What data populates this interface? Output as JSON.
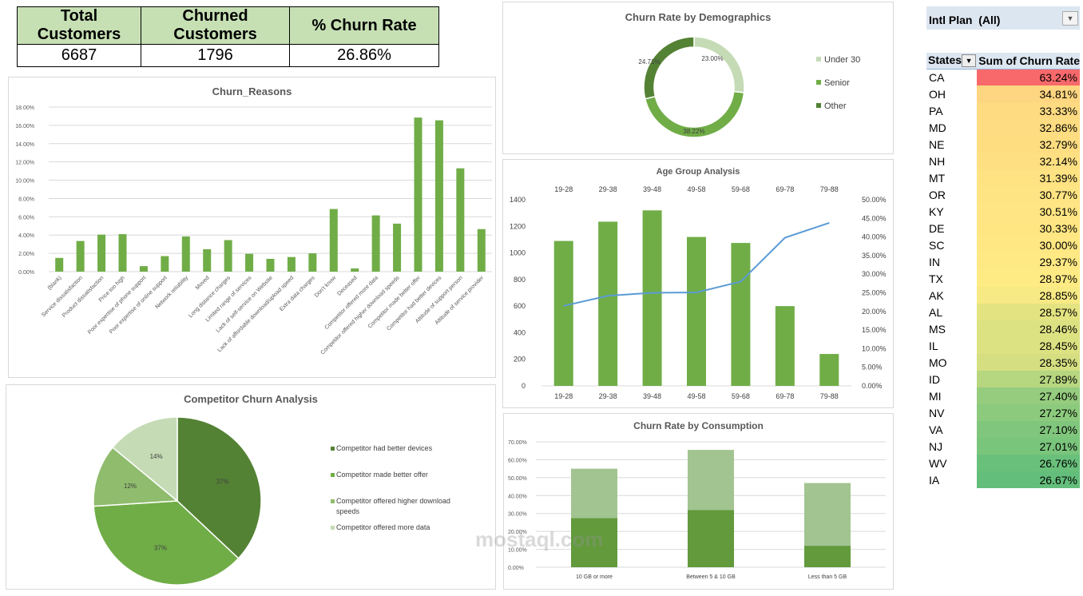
{
  "kpi": {
    "headers": [
      "Total Customers",
      "Churned Customers",
      "% Churn Rate"
    ],
    "values": [
      "6687",
      "1796",
      "26.86%"
    ]
  },
  "colors": {
    "dark": "#548235",
    "mid": "#70ad47",
    "light": "#a9d08e",
    "lighter": "#c5dbb5",
    "line": "#5b9bd5"
  },
  "watermark": "mostaql.com",
  "filter": {
    "label": "Intl Plan",
    "value": "(All)"
  },
  "pivot": {
    "col1": "States",
    "col2": "Sum of Churn Rate",
    "rows": [
      [
        "CA",
        "63.24%"
      ],
      [
        "OH",
        "34.81%"
      ],
      [
        "PA",
        "33.33%"
      ],
      [
        "MD",
        "32.86%"
      ],
      [
        "NE",
        "32.79%"
      ],
      [
        "NH",
        "32.14%"
      ],
      [
        "MT",
        "31.39%"
      ],
      [
        "OR",
        "30.77%"
      ],
      [
        "KY",
        "30.51%"
      ],
      [
        "DE",
        "30.33%"
      ],
      [
        "SC",
        "30.00%"
      ],
      [
        "IN",
        "29.37%"
      ],
      [
        "TX",
        "28.97%"
      ],
      [
        "AK",
        "28.85%"
      ],
      [
        "AL",
        "28.57%"
      ],
      [
        "MS",
        "28.46%"
      ],
      [
        "IL",
        "28.45%"
      ],
      [
        "MO",
        "28.35%"
      ],
      [
        "ID",
        "27.89%"
      ],
      [
        "MI",
        "27.40%"
      ],
      [
        "NV",
        "27.27%"
      ],
      [
        "VA",
        "27.10%"
      ],
      [
        "NJ",
        "27.01%"
      ],
      [
        "WV",
        "26.76%"
      ],
      [
        "IA",
        "26.67%"
      ]
    ]
  },
  "chart_data": [
    {
      "id": "reasons",
      "type": "bar",
      "title": "Churn_Reasons",
      "ylim": [
        0,
        18
      ],
      "yticks": [
        "0.00%",
        "2.00%",
        "4.00%",
        "6.00%",
        "8.00%",
        "10.00%",
        "12.00%",
        "14.00%",
        "16.00%",
        "18.00%"
      ],
      "categories": [
        "(blank)",
        "Service dissatisfaction",
        "Product dissatisfaction",
        "Price too high",
        "Poor expertise of phone support",
        "Poor expertise of online support",
        "Network reliability",
        "Moved",
        "Long distance charges",
        "Limited range of services",
        "Lack of self-service on Website",
        "Lack of affordable download/upload speed",
        "Extra data charges",
        "Don't know",
        "Deceased",
        "Competitor offered more data",
        "Competitor offered higher download speeds",
        "Competitor made better offer",
        "Competitor had better devices",
        "Attitude of support person",
        "Attitude of service provider"
      ],
      "values": [
        1.5,
        3.35,
        4.05,
        4.1,
        0.6,
        1.7,
        3.85,
        2.45,
        3.45,
        1.95,
        1.4,
        1.6,
        2.0,
        6.85,
        0.35,
        6.15,
        5.25,
        16.85,
        16.55,
        11.3,
        4.65
      ]
    },
    {
      "id": "demo",
      "type": "pie",
      "title": "Churn Rate by Demographics",
      "categories": [
        "Under 30",
        "Senior",
        "Other"
      ],
      "values": [
        23.0,
        38.22,
        24.71
      ],
      "labels": [
        "23.00%",
        "38.22%",
        "24.71%"
      ]
    },
    {
      "id": "age",
      "type": "bar",
      "title": "Age Group Analysis",
      "categories": [
        "19-28",
        "29-38",
        "39-48",
        "49-58",
        "59-68",
        "69-78",
        "79-88"
      ],
      "values": [
        1090,
        1235,
        1320,
        1120,
        1075,
        600,
        240
      ],
      "line_values": [
        21.5,
        24.2,
        25.0,
        25.1,
        28.0,
        39.8,
        43.8
      ],
      "ylim": [
        0,
        1400
      ],
      "y2lim": [
        0,
        50
      ],
      "yticks": [
        "0",
        "200",
        "400",
        "600",
        "800",
        "1000",
        "1200",
        "1400"
      ],
      "y2ticks": [
        "0.00%",
        "5.00%",
        "10.00%",
        "15.00%",
        "20.00%",
        "25.00%",
        "30.00%",
        "35.00%",
        "40.00%",
        "45.00%",
        "50.00%"
      ]
    },
    {
      "id": "comp",
      "type": "pie",
      "title": "Competitor Churn Analysis",
      "categories": [
        "Competitor had better devices",
        "Competitor made better offer",
        "Competitor offered higher download speeds",
        "Competitor offered more data"
      ],
      "values": [
        37,
        37,
        12,
        14
      ],
      "labels": [
        "37%",
        "37%",
        "12%",
        "14%"
      ]
    },
    {
      "id": "cons",
      "type": "bar",
      "stacked": true,
      "title": "Churn Rate by Consumption",
      "categories": [
        "10 GB or more",
        "Between 5 & 10 GB",
        "Less than 5 GB"
      ],
      "series": [
        {
          "name": "lower",
          "values": [
            27.5,
            32.0,
            12.0
          ]
        },
        {
          "name": "upper",
          "values": [
            27.5,
            33.5,
            35.0
          ]
        }
      ],
      "ylim": [
        0,
        70
      ],
      "yticks": [
        "0.00%",
        "10.00%",
        "20.00%",
        "30.00%",
        "40.00%",
        "50.00%",
        "60.00%",
        "70.00%"
      ]
    }
  ]
}
